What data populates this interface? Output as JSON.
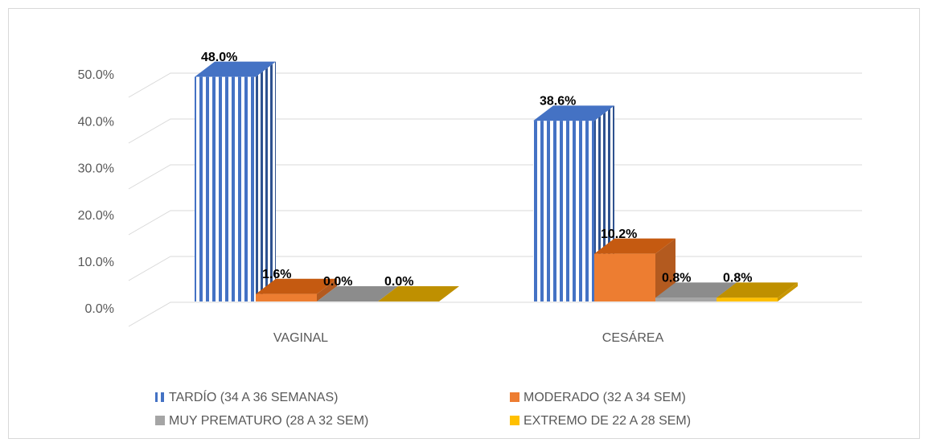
{
  "chart_data": {
    "type": "bar3d",
    "categories": [
      "VAGINAL",
      "CESÁREA"
    ],
    "series": [
      {
        "name": "TARDÍO (34 A 36 SEMANAS)",
        "color": "#4472c4",
        "values": [
          48.0,
          38.6
        ],
        "value_labels": [
          "48.0%",
          "38.6%"
        ]
      },
      {
        "name": "MODERADO (32 A 34 SEM)",
        "color": "#ed7d31",
        "values": [
          1.6,
          10.2
        ],
        "value_labels": [
          "1.6%",
          "10.2%"
        ]
      },
      {
        "name": "MUY PREMATURO (28 A 32 SEM)",
        "color": "#a5a5a5",
        "values": [
          0.0,
          0.8
        ],
        "value_labels": [
          "0.0%",
          "0.8%"
        ]
      },
      {
        "name": "EXTREMO DE 22 A 28 SEM)",
        "color": "#ffc000",
        "values": [
          0.0,
          0.8
        ],
        "value_labels": [
          "0.0%",
          "0.8%"
        ]
      }
    ],
    "ylim": [
      0,
      50
    ],
    "yticks": [
      {
        "value": 0,
        "label": "0.0%"
      },
      {
        "value": 10,
        "label": "10.0%"
      },
      {
        "value": 20,
        "label": "20.0%"
      },
      {
        "value": 30,
        "label": "30.0%"
      },
      {
        "value": 40,
        "label": "40.0%"
      },
      {
        "value": 50,
        "label": "50.0%"
      }
    ],
    "grid": true,
    "legend": "bottom"
  }
}
